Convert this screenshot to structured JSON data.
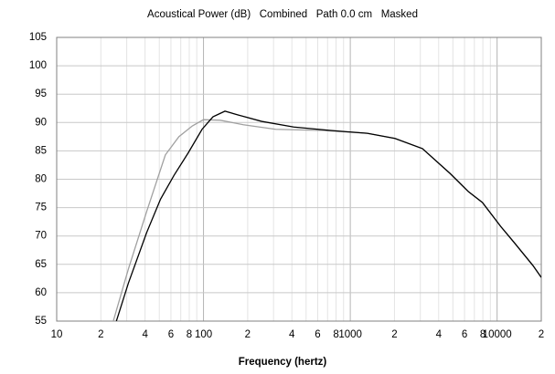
{
  "chart_data": {
    "type": "line",
    "title": "Acoustical Power (dB)   Combined   Path 0.0 cm   Masked",
    "x_label": "Frequency (hertz)",
    "log_x": true,
    "grid": true,
    "xlim": [
      10,
      20000
    ],
    "ylim": [
      55,
      105
    ],
    "xticks": [
      10,
      {
        "value": 20,
        "label": "2"
      },
      {
        "value": 40,
        "label": "4"
      },
      {
        "value": 60,
        "label": "6"
      },
      {
        "value": 80,
        "label": "8"
      },
      100,
      {
        "value": 200,
        "label": "2"
      },
      {
        "value": 400,
        "label": "4"
      },
      {
        "value": 600,
        "label": "6"
      },
      {
        "value": 800,
        "label": "8"
      },
      1000,
      {
        "value": 2000,
        "label": "2"
      },
      {
        "value": 4000,
        "label": "4"
      },
      {
        "value": 6000,
        "label": "6"
      },
      {
        "value": 8000,
        "label": "8"
      },
      10000,
      {
        "value": 20000,
        "label": "2"
      }
    ],
    "x_minor_ticks": [
      30,
      50,
      70,
      90,
      300,
      500,
      700,
      900,
      3000,
      5000,
      7000,
      9000
    ],
    "yticks": [
      55,
      60,
      65,
      70,
      75,
      80,
      85,
      90,
      95,
      100,
      105
    ],
    "series": [
      {
        "color": "#a0a0a0",
        "x": [
          24.3,
          30.8,
          41,
          55,
          68,
          84,
          100,
          130,
          187,
          310,
          636,
          1306,
          2014,
          3100,
          4790,
          6385,
          7943,
          10570,
          13120,
          17540,
          20000
        ],
        "values": [
          55,
          64.2,
          74.3,
          84.3,
          87.5,
          89.4,
          90.5,
          90.4,
          89.6,
          88.8,
          88.6,
          88.1,
          87.2,
          85.4,
          81,
          77.8,
          75.9,
          71.7,
          68.8,
          64.8,
          62.7
        ]
      },
      {
        "color": "#000000",
        "x": [
          25.5,
          30.8,
          41,
          51,
          63,
          78.5,
          97.8,
          116,
          140,
          174,
          249,
          412,
          734,
          1306,
          2014,
          3100,
          4790,
          6385,
          7943,
          10570,
          13120,
          17540,
          20000
        ],
        "values": [
          55,
          61.7,
          70.6,
          76.5,
          80.7,
          84.6,
          88.8,
          91,
          92,
          91.3,
          90.2,
          89.2,
          88.6,
          88.1,
          87.2,
          85.4,
          81,
          77.8,
          75.9,
          71.7,
          68.8,
          64.8,
          62.7
        ]
      }
    ]
  }
}
